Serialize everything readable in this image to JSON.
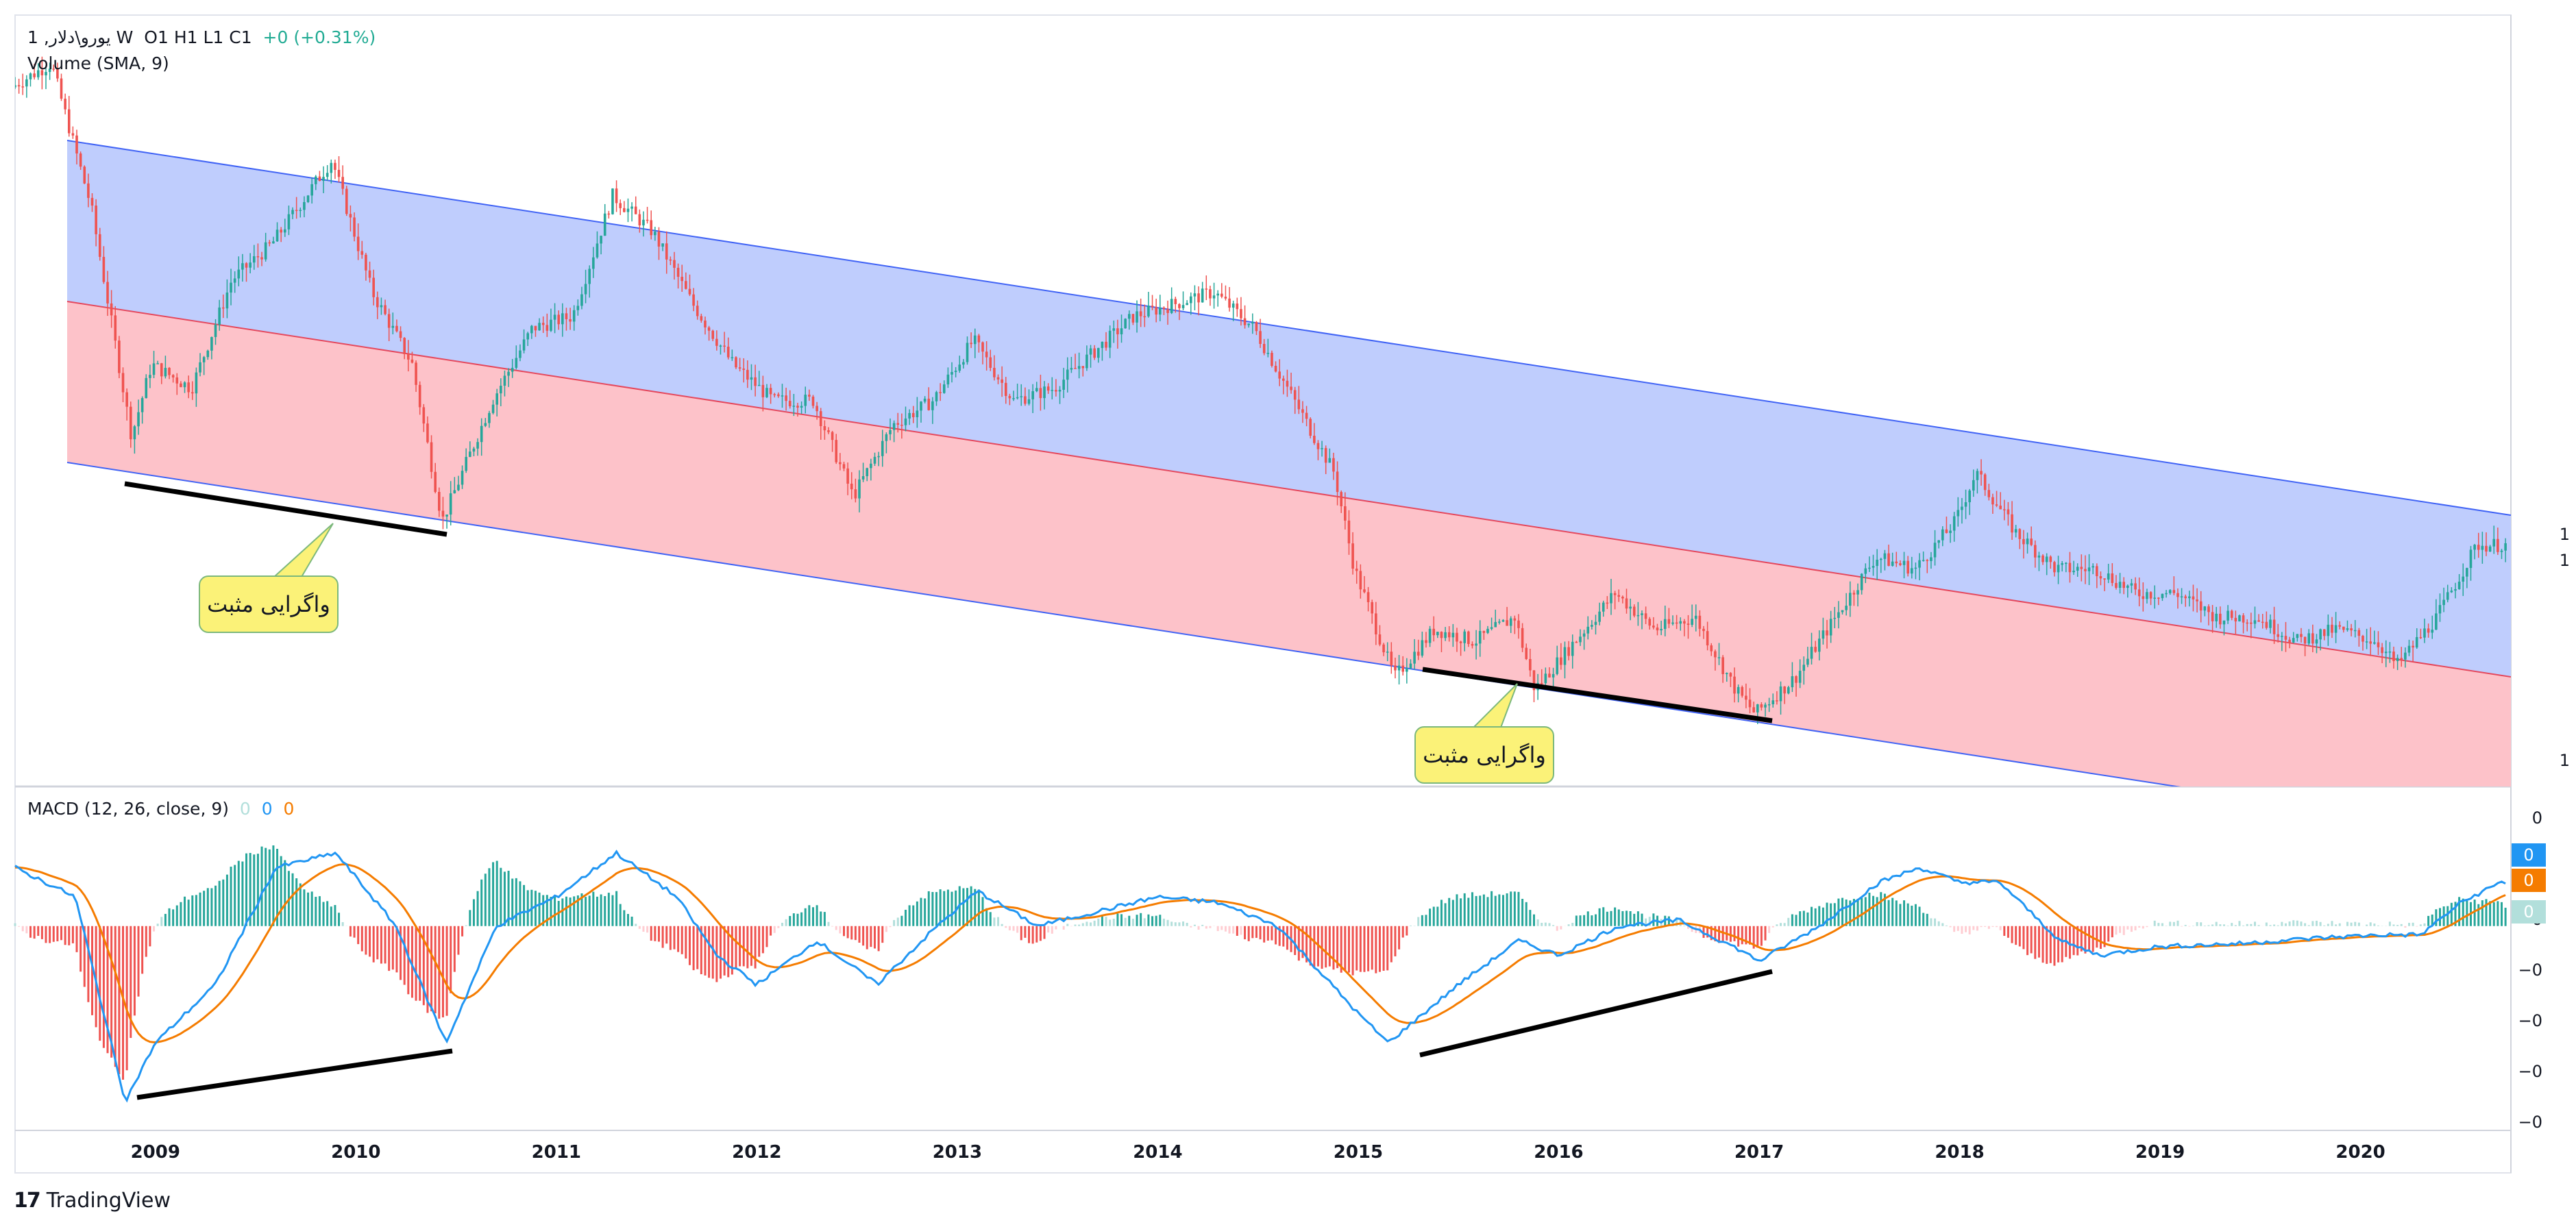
{
  "header": {
    "symbol_line": "1 ,یورو\\دلار W",
    "ohlc": "O1  H1  L1  C1",
    "change": "+0 (+0.31%)",
    "volume_label": "Volume (SMA, 9)"
  },
  "macd": {
    "label": "MACD (12, 26, close, 9)",
    "values": [
      "0",
      "0",
      "0"
    ],
    "y_ticks": [
      "0",
      "−0",
      "−0",
      "−0",
      "−0",
      "−0"
    ],
    "badges": [
      {
        "text": "0",
        "color": "#2196f3"
      },
      {
        "text": "0",
        "color": "#f57c00"
      },
      {
        "text": "0",
        "color": "#b2dfdb"
      }
    ]
  },
  "price_axis": {
    "tags": [
      "1",
      "1",
      "1"
    ]
  },
  "annotations": {
    "callout_1": "واگرایی مثبت",
    "callout_2": "واگرایی مثبت"
  },
  "footer": {
    "brand": "TradingView"
  },
  "colors": {
    "upper_channel": "#bfcdfd",
    "lower_channel": "#fdc2c9",
    "channel_border": "#4063f5",
    "midline": "#e5485d",
    "candle_up": "#26a69a",
    "candle_down": "#ef5350",
    "macd_line": "#2196f3",
    "signal_line": "#f57c00"
  },
  "chart_data": {
    "type": "candlestick",
    "timeframe": "W",
    "x_ticks": [
      "2009",
      "2010",
      "2011",
      "2012",
      "2013",
      "2014",
      "2015",
      "2016",
      "2017",
      "2018",
      "2019",
      "2020"
    ],
    "price_series_approx": [
      [
        2008.3,
        1.56
      ],
      [
        2008.5,
        1.58
      ],
      [
        2008.7,
        1.46
      ],
      [
        2008.9,
        1.27
      ],
      [
        2009.0,
        1.33
      ],
      [
        2009.2,
        1.31
      ],
      [
        2009.4,
        1.4
      ],
      [
        2009.6,
        1.43
      ],
      [
        2009.9,
        1.5
      ],
      [
        2010.1,
        1.39
      ],
      [
        2010.3,
        1.33
      ],
      [
        2010.45,
        1.2
      ],
      [
        2010.7,
        1.3
      ],
      [
        2010.9,
        1.36
      ],
      [
        2011.1,
        1.37
      ],
      [
        2011.3,
        1.47
      ],
      [
        2011.5,
        1.44
      ],
      [
        2011.7,
        1.38
      ],
      [
        2011.9,
        1.33
      ],
      [
        2012.1,
        1.3
      ],
      [
        2012.3,
        1.3
      ],
      [
        2012.5,
        1.22
      ],
      [
        2012.7,
        1.28
      ],
      [
        2012.9,
        1.3
      ],
      [
        2013.1,
        1.35
      ],
      [
        2013.3,
        1.3
      ],
      [
        2013.5,
        1.31
      ],
      [
        2013.7,
        1.34
      ],
      [
        2013.9,
        1.37
      ],
      [
        2014.1,
        1.38
      ],
      [
        2014.3,
        1.39
      ],
      [
        2014.5,
        1.36
      ],
      [
        2014.7,
        1.3
      ],
      [
        2014.9,
        1.24
      ],
      [
        2015.0,
        1.16
      ],
      [
        2015.2,
        1.07
      ],
      [
        2015.4,
        1.11
      ],
      [
        2015.6,
        1.1
      ],
      [
        2015.8,
        1.12
      ],
      [
        2015.9,
        1.06
      ],
      [
        2016.1,
        1.1
      ],
      [
        2016.3,
        1.14
      ],
      [
        2016.5,
        1.11
      ],
      [
        2016.7,
        1.12
      ],
      [
        2016.9,
        1.06
      ],
      [
        2017.0,
        1.04
      ],
      [
        2017.2,
        1.07
      ],
      [
        2017.4,
        1.12
      ],
      [
        2017.6,
        1.17
      ],
      [
        2017.8,
        1.16
      ],
      [
        2018.0,
        1.2
      ],
      [
        2018.1,
        1.24
      ],
      [
        2018.3,
        1.19
      ],
      [
        2018.5,
        1.16
      ],
      [
        2018.7,
        1.16
      ],
      [
        2018.9,
        1.14
      ],
      [
        2019.1,
        1.14
      ],
      [
        2019.3,
        1.12
      ],
      [
        2019.5,
        1.12
      ],
      [
        2019.7,
        1.1
      ],
      [
        2019.9,
        1.11
      ],
      [
        2020.1,
        1.1
      ],
      [
        2020.2,
        1.08
      ],
      [
        2020.4,
        1.12
      ],
      [
        2020.6,
        1.18
      ],
      [
        2020.7,
        1.18
      ]
    ],
    "macd_line_approx": [
      [
        2008.3,
        0.02
      ],
      [
        2008.6,
        0.01
      ],
      [
        2008.85,
        -0.06
      ],
      [
        2009.0,
        -0.04
      ],
      [
        2009.3,
        -0.02
      ],
      [
        2009.6,
        0.02
      ],
      [
        2009.9,
        0.025
      ],
      [
        2010.2,
        0.0
      ],
      [
        2010.45,
        -0.04
      ],
      [
        2010.7,
        0.0
      ],
      [
        2011.0,
        0.01
      ],
      [
        2011.3,
        0.025
      ],
      [
        2011.6,
        0.01
      ],
      [
        2011.8,
        -0.01
      ],
      [
        2012.0,
        -0.02
      ],
      [
        2012.3,
        -0.005
      ],
      [
        2012.6,
        -0.02
      ],
      [
        2012.9,
        0.0
      ],
      [
        2013.1,
        0.012
      ],
      [
        2013.4,
        0.0
      ],
      [
        2013.7,
        0.005
      ],
      [
        2014.0,
        0.01
      ],
      [
        2014.3,
        0.008
      ],
      [
        2014.6,
        0.0
      ],
      [
        2014.8,
        -0.015
      ],
      [
        2015.0,
        -0.03
      ],
      [
        2015.15,
        -0.04
      ],
      [
        2015.5,
        -0.02
      ],
      [
        2015.8,
        -0.005
      ],
      [
        2016.0,
        -0.01
      ],
      [
        2016.3,
        0.0
      ],
      [
        2016.6,
        0.002
      ],
      [
        2016.9,
        -0.008
      ],
      [
        2017.0,
        -0.012
      ],
      [
        2017.3,
        0.0
      ],
      [
        2017.6,
        0.015
      ],
      [
        2017.8,
        0.02
      ],
      [
        2018.0,
        0.015
      ],
      [
        2018.2,
        0.015
      ],
      [
        2018.5,
        -0.005
      ],
      [
        2018.7,
        -0.01
      ],
      [
        2019.0,
        -0.007
      ],
      [
        2019.4,
        -0.006
      ],
      [
        2019.8,
        -0.004
      ],
      [
        2020.1,
        -0.003
      ],
      [
        2020.3,
        -0.003
      ],
      [
        2020.5,
        0.008
      ],
      [
        2020.7,
        0.015
      ]
    ]
  }
}
